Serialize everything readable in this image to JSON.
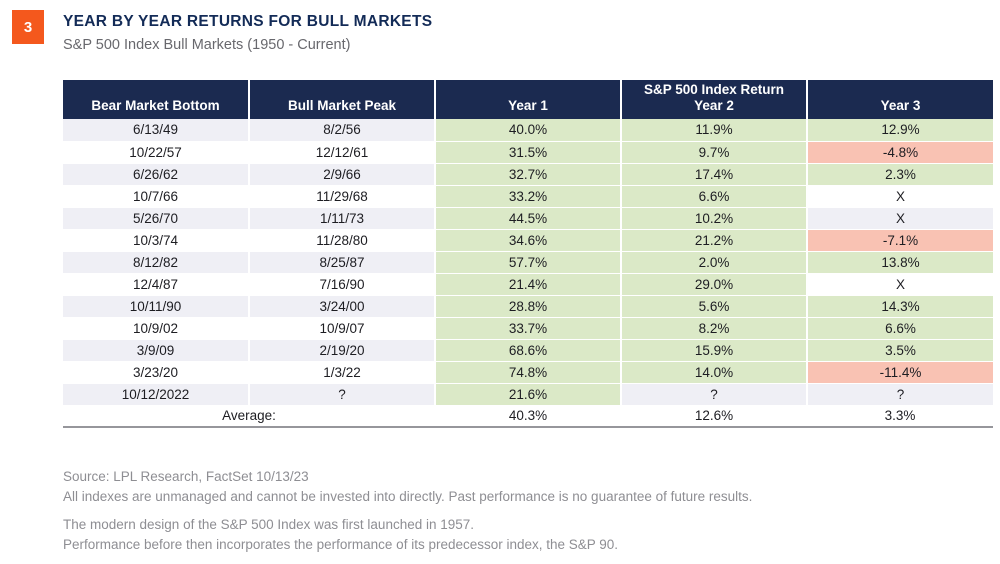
{
  "header": {
    "figure_number": "3",
    "title": "YEAR BY YEAR RETURNS FOR BULL MARKETS",
    "subtitle": "S&P 500 Index Bull Markets (1950 - Current)"
  },
  "colors": {
    "accent_orange": "#F4581D",
    "header_navy": "#1B2A50",
    "title_navy": "#132B57",
    "subtitle_gray": "#68686D",
    "positive_fill": "#DBE9C7",
    "negative_fill": "#F9C2B3",
    "stripe_fill": "#EFEFF5",
    "text_dark": "#1D1D22",
    "muted_gray": "#8E8E93"
  },
  "chart_data": {
    "type": "table",
    "title": "YEAR BY YEAR RETURNS FOR BULL MARKETS",
    "subtitle": "S&P 500 Index Bull Markets (1950 - Current)",
    "columns": [
      [
        "Bear Market Bottom"
      ],
      [
        "Bull Market Peak"
      ],
      [
        "Year 1"
      ],
      [
        "S&P 500 Index Return",
        "Year 2"
      ],
      [
        "Year 3"
      ]
    ],
    "rows": [
      {
        "cells": [
          {
            "text": "6/13/49"
          },
          {
            "text": "8/2/56"
          },
          {
            "text": "40.0%",
            "fill": "positive"
          },
          {
            "text": "11.9%",
            "fill": "positive"
          },
          {
            "text": "12.9%",
            "fill": "positive"
          }
        ]
      },
      {
        "cells": [
          {
            "text": "10/22/57"
          },
          {
            "text": "12/12/61"
          },
          {
            "text": "31.5%",
            "fill": "positive"
          },
          {
            "text": "9.7%",
            "fill": "positive"
          },
          {
            "text": "-4.8%",
            "fill": "negative"
          }
        ]
      },
      {
        "cells": [
          {
            "text": "6/26/62"
          },
          {
            "text": "2/9/66"
          },
          {
            "text": "32.7%",
            "fill": "positive"
          },
          {
            "text": "17.4%",
            "fill": "positive"
          },
          {
            "text": "2.3%",
            "fill": "positive"
          }
        ]
      },
      {
        "cells": [
          {
            "text": "10/7/66"
          },
          {
            "text": "11/29/68"
          },
          {
            "text": "33.2%",
            "fill": "positive"
          },
          {
            "text": "6.6%",
            "fill": "positive"
          },
          {
            "text": "X"
          }
        ]
      },
      {
        "cells": [
          {
            "text": "5/26/70"
          },
          {
            "text": "1/11/73"
          },
          {
            "text": "44.5%",
            "fill": "positive"
          },
          {
            "text": "10.2%",
            "fill": "positive"
          },
          {
            "text": "X"
          }
        ]
      },
      {
        "cells": [
          {
            "text": "10/3/74"
          },
          {
            "text": "11/28/80"
          },
          {
            "text": "34.6%",
            "fill": "positive"
          },
          {
            "text": "21.2%",
            "fill": "positive"
          },
          {
            "text": "-7.1%",
            "fill": "negative"
          }
        ]
      },
      {
        "cells": [
          {
            "text": "8/12/82"
          },
          {
            "text": "8/25/87"
          },
          {
            "text": "57.7%",
            "fill": "positive"
          },
          {
            "text": "2.0%",
            "fill": "positive"
          },
          {
            "text": "13.8%",
            "fill": "positive"
          }
        ]
      },
      {
        "cells": [
          {
            "text": "12/4/87"
          },
          {
            "text": "7/16/90"
          },
          {
            "text": "21.4%",
            "fill": "positive"
          },
          {
            "text": "29.0%",
            "fill": "positive"
          },
          {
            "text": "X"
          }
        ]
      },
      {
        "cells": [
          {
            "text": "10/11/90"
          },
          {
            "text": "3/24/00"
          },
          {
            "text": "28.8%",
            "fill": "positive"
          },
          {
            "text": "5.6%",
            "fill": "positive"
          },
          {
            "text": "14.3%",
            "fill": "positive"
          }
        ]
      },
      {
        "cells": [
          {
            "text": "10/9/02"
          },
          {
            "text": "10/9/07"
          },
          {
            "text": "33.7%",
            "fill": "positive"
          },
          {
            "text": "8.2%",
            "fill": "positive"
          },
          {
            "text": "6.6%",
            "fill": "positive"
          }
        ]
      },
      {
        "cells": [
          {
            "text": "3/9/09"
          },
          {
            "text": "2/19/20"
          },
          {
            "text": "68.6%",
            "fill": "positive"
          },
          {
            "text": "15.9%",
            "fill": "positive"
          },
          {
            "text": "3.5%",
            "fill": "positive"
          }
        ]
      },
      {
        "cells": [
          {
            "text": "3/23/20"
          },
          {
            "text": "1/3/22"
          },
          {
            "text": "74.8%",
            "fill": "positive"
          },
          {
            "text": "14.0%",
            "fill": "positive"
          },
          {
            "text": "-11.4%",
            "fill": "negative"
          }
        ]
      },
      {
        "cells": [
          {
            "text": "10/12/2022"
          },
          {
            "text": "?"
          },
          {
            "text": "21.6%",
            "fill": "positive"
          },
          {
            "text": "?"
          },
          {
            "text": "?"
          }
        ]
      }
    ],
    "average_row": {
      "label": "Average:",
      "cells": [
        {
          "text": "40.3%"
        },
        {
          "text": "12.6%"
        },
        {
          "text": "3.3%"
        }
      ]
    }
  },
  "footnotes": [
    "Source: LPL Research, FactSet  10/13/23",
    "All indexes are unmanaged and cannot be invested into directly. Past performance is no guarantee of future results.",
    "The modern design of the S&P 500 Index was first launched in 1957.",
    "Performance before then incorporates the performance of its predecessor index, the S&P 90."
  ]
}
